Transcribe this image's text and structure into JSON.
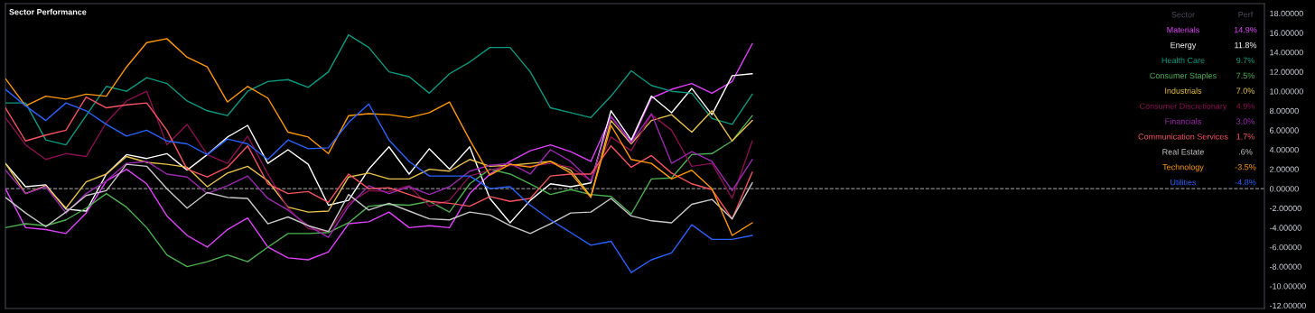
{
  "chart_data": {
    "type": "line",
    "title": "Sector Performance",
    "legend_title": "Sector",
    "annotations": [
      "Perf",
      "14.9%",
      "11.8%",
      "9.7%",
      "7.5%",
      "7.0%",
      "4.9%",
      "3.0%",
      "1.7%",
      ".6%",
      "-3.5%",
      "-4.8%"
    ],
    "categories": [
      null,
      null,
      null,
      null,
      null,
      null,
      null,
      null,
      null,
      null,
      null,
      null,
      null,
      null,
      null,
      null,
      null,
      null,
      null,
      null,
      null,
      null,
      null,
      null,
      null,
      null,
      null,
      null,
      null,
      null,
      null,
      null,
      null,
      null,
      null,
      null,
      null,
      null
    ],
    "series": [
      {
        "name": "Materials",
        "color": "#e040fb",
        "values": [
          0.0,
          -4.0,
          -4.2,
          -4.6,
          -2.5,
          0.8,
          2.0,
          0.5,
          -2.8,
          -4.8,
          -6.0,
          -4.2,
          -3.0,
          -6.0,
          -7.1,
          -7.3,
          -6.5,
          -3.6,
          -3.4,
          -2.4,
          -4.0,
          -3.8,
          -4.0,
          -0.5,
          1.5,
          2.8,
          3.9,
          4.5,
          3.8,
          2.8,
          7.4,
          4.8,
          9.3,
          10.2,
          10.8,
          9.8,
          11.0,
          14.9
        ]
      },
      {
        "name": "Energy",
        "color": "#ffffff",
        "values": [
          2.6,
          0.2,
          0.4,
          -2.1,
          -2.3,
          1.5,
          3.5,
          3.1,
          3.6,
          1.9,
          3.5,
          5.3,
          6.5,
          2.6,
          4.0,
          2.5,
          -1.7,
          -1.2,
          2.0,
          4.3,
          1.5,
          4.1,
          2.0,
          4.3,
          -1.0,
          -3.5,
          -1.2,
          0.5,
          0.2,
          0.6,
          8.0,
          5.0,
          9.5,
          7.8,
          10.3,
          7.6,
          11.6,
          11.8
        ]
      },
      {
        "name": "Health Care",
        "color": "#089981",
        "values": [
          8.8,
          8.8,
          5.0,
          4.5,
          7.5,
          10.5,
          10.0,
          11.4,
          10.8,
          9.0,
          8.0,
          7.5,
          10.0,
          11.0,
          11.2,
          10.4,
          12.0,
          15.8,
          14.5,
          12.0,
          11.5,
          9.8,
          11.8,
          13.0,
          14.5,
          14.5,
          12.0,
          8.3,
          7.8,
          7.3,
          9.5,
          12.1,
          10.6,
          10.0,
          9.8,
          7.2,
          6.6,
          9.7
        ]
      },
      {
        "name": "Consumer Staples",
        "color": "#4caf50",
        "values": [
          -4.0,
          -3.6,
          -3.8,
          -3.2,
          -2.0,
          -0.5,
          -1.9,
          -4.0,
          -6.8,
          -8.0,
          -7.5,
          -6.8,
          -7.5,
          -6.0,
          -4.6,
          -4.6,
          -4.5,
          -3.5,
          -1.8,
          -1.6,
          -1.7,
          -1.3,
          -2.4,
          0.5,
          2.0,
          1.5,
          0.5,
          -0.6,
          -0.1,
          -0.6,
          -0.8,
          -2.6,
          1.0,
          1.1,
          3.5,
          3.6,
          4.9,
          7.5
        ]
      },
      {
        "name": "Industrials",
        "color": "#e8c04a",
        "values": [
          2.6,
          -0.5,
          0.3,
          -2.0,
          0.7,
          1.5,
          3.3,
          2.7,
          2.5,
          2.2,
          0.2,
          1.6,
          2.3,
          0.8,
          -1.9,
          -2.4,
          -2.3,
          1.2,
          1.6,
          1.0,
          1.0,
          2.0,
          1.8,
          3.0,
          2.3,
          2.4,
          2.6,
          2.8,
          1.9,
          -0.8,
          7.0,
          4.6,
          7.0,
          7.6,
          5.8,
          8.0,
          4.9,
          7.0
        ]
      },
      {
        "name": "Consumer Discretionary",
        "color": "#880e4f",
        "values": [
          7.3,
          4.5,
          3.0,
          3.6,
          3.3,
          6.8,
          9.0,
          10.0,
          4.5,
          6.6,
          3.5,
          2.6,
          5.4,
          1.5,
          -2.0,
          -4.1,
          -4.4,
          -1.5,
          -0.2,
          -0.3,
          0.3,
          -1.8,
          -1.2,
          1.3,
          1.9,
          2.4,
          2.3,
          2.6,
          2.2,
          0.8,
          5.3,
          3.9,
          7.6,
          6.0,
          2.3,
          2.6,
          -1.0,
          4.9
        ]
      },
      {
        "name": "Financials",
        "color": "#9c27b0",
        "values": [
          1.9,
          -0.5,
          0.2,
          -2.5,
          -0.5,
          0.8,
          2.6,
          2.8,
          1.5,
          1.2,
          -0.5,
          0.3,
          1.3,
          -1.0,
          -2.2,
          -3.8,
          -5.0,
          -1.8,
          0.3,
          -0.5,
          0.2,
          -0.6,
          0.2,
          1.8,
          2.4,
          2.6,
          1.5,
          4.0,
          2.8,
          0.8,
          7.4,
          4.7,
          7.7,
          2.6,
          3.8,
          2.8,
          -0.2,
          3.0
        ]
      },
      {
        "name": "Communication Services",
        "color": "#f7525f",
        "values": [
          8.3,
          4.9,
          5.5,
          6.0,
          9.4,
          8.3,
          8.6,
          8.8,
          6.0,
          2.0,
          1.2,
          2.2,
          4.4,
          0.5,
          -0.5,
          -0.3,
          -1.4,
          1.5,
          0.0,
          0.1,
          -0.6,
          -1.3,
          -1.5,
          -1.8,
          -0.8,
          -1.3,
          -1.0,
          1.3,
          1.5,
          1.5,
          4.4,
          2.2,
          3.4,
          1.6,
          0.5,
          -0.1,
          -3.1,
          1.7
        ]
      },
      {
        "name": "Real Estate",
        "color": "#c8c8c8",
        "values": [
          -0.9,
          -2.5,
          -3.9,
          -2.4,
          -0.7,
          -0.2,
          2.5,
          2.3,
          0.0,
          -2.0,
          -0.4,
          -0.9,
          -1.0,
          -3.6,
          -2.9,
          -3.8,
          -4.4,
          -0.6,
          -2.2,
          -1.5,
          -2.3,
          -3.1,
          -3.2,
          -2.4,
          -2.7,
          -3.8,
          -4.6,
          -3.6,
          -2.5,
          -2.4,
          -1.0,
          -2.8,
          -3.3,
          -3.5,
          -1.6,
          -1.1,
          -3.1,
          0.6
        ]
      },
      {
        "name": "Technology",
        "color": "#ff9800",
        "values": [
          11.3,
          8.5,
          9.5,
          9.2,
          9.7,
          9.5,
          12.5,
          15.0,
          15.4,
          13.5,
          12.5,
          8.9,
          10.5,
          9.3,
          5.8,
          5.3,
          3.6,
          7.5,
          7.7,
          7.6,
          7.3,
          7.8,
          8.9,
          5.0,
          1.4,
          2.5,
          2.2,
          2.8,
          1.6,
          -0.9,
          6.5,
          3.0,
          2.6,
          1.0,
          1.9,
          0.0,
          -4.8,
          -3.5
        ]
      },
      {
        "name": "Utilities",
        "color": "#2962ff",
        "values": [
          10.2,
          8.5,
          7.0,
          8.8,
          8.0,
          6.6,
          5.4,
          6.0,
          4.9,
          4.6,
          3.5,
          5.1,
          4.6,
          3.0,
          5.0,
          4.1,
          4.2,
          6.8,
          8.7,
          5.0,
          2.8,
          1.3,
          1.3,
          1.3,
          0.0,
          0.2,
          -1.7,
          -3.2,
          -4.5,
          -5.8,
          -5.4,
          -8.6,
          -7.3,
          -6.6,
          -3.7,
          -5.2,
          -5.2,
          -4.8
        ]
      }
    ],
    "ylim": [
      -12.3,
      19.0
    ],
    "yticks": [
      {
        "value": 18,
        "label": "18.00000"
      },
      {
        "value": 16,
        "label": "16.00000"
      },
      {
        "value": 14,
        "label": "14.00000"
      },
      {
        "value": 12,
        "label": "12.00000"
      },
      {
        "value": 10,
        "label": "10.00000"
      },
      {
        "value": 8,
        "label": "8.00000"
      },
      {
        "value": 6,
        "label": "6.00000"
      },
      {
        "value": 4,
        "label": "4.00000"
      },
      {
        "value": 2,
        "label": "2.00000"
      },
      {
        "value": 0,
        "label": "0.00000"
      },
      {
        "value": -2,
        "label": "-2.00000"
      },
      {
        "value": -4,
        "label": "-4.00000"
      },
      {
        "value": -6,
        "label": "-6.00000"
      },
      {
        "value": -8,
        "label": "-8.00000"
      },
      {
        "value": -10,
        "label": "-10.00000"
      },
      {
        "value": -12,
        "label": "-12.00000"
      }
    ],
    "ref_lines": [
      {
        "axis": "y",
        "value": 0,
        "color": "#8a8a8a",
        "line_style": "dashed"
      }
    ],
    "tick_labels": "y",
    "legend": "top right",
    "grid": false,
    "marker": "none",
    "line_style": "solid"
  }
}
